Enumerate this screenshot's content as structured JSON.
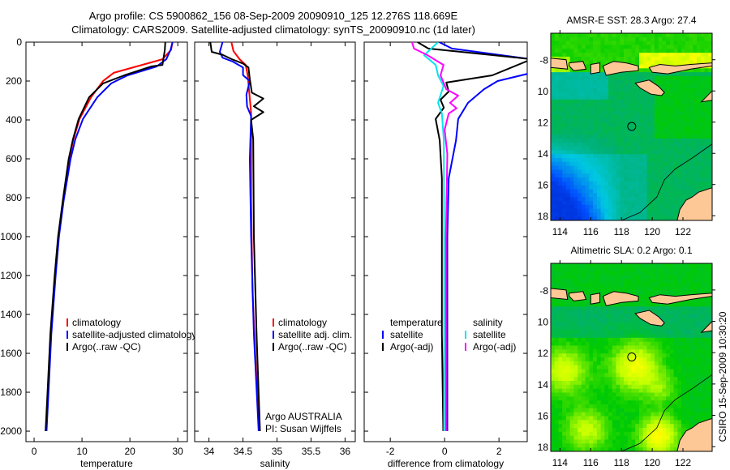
{
  "title": {
    "line1": "Argo profile: CS 5900862_156 08-Sep-2009 20090910_125 12.276S 118.669E",
    "line2": "Climatology: CARS2009. Satellite-adjusted climatology: synTS_20090910.nc (1d later)"
  },
  "side_note": "CSIRO 15-Sep-2009 10:30:20",
  "credit": {
    "line1": "Argo AUSTRALIA",
    "line2": "PI: Susan Wijffels"
  },
  "colors": {
    "climatology": "#ff0000",
    "satellite": "#0000ff",
    "argo": "#000000",
    "sal_satellite": "#00e5ee",
    "sal_argo": "#ff00ff",
    "land": "#fdc896"
  },
  "chart_data": [
    {
      "type": "line",
      "id": "temperature",
      "xlabel": "temperature",
      "ylabel": "",
      "xlim": [
        -1.7,
        32
      ],
      "ylim": [
        0,
        2054
      ],
      "y_reversed": true,
      "xticks": [
        0,
        10,
        20,
        30
      ],
      "xtick_labels": [
        "0",
        "10",
        "20",
        "30"
      ],
      "yticks": [
        0,
        200,
        400,
        600,
        800,
        1000,
        1200,
        1400,
        1600,
        1800,
        2000
      ],
      "ytick_labels": [
        "0",
        "200",
        "400",
        "600",
        "800",
        "1000",
        "1200",
        "1400",
        "1600",
        "1800",
        "2000"
      ],
      "legend": {
        "placement": "lower-center",
        "entries": [
          "climatology",
          "satellite-adjusted climatology",
          "Argo(..raw -QC)"
        ]
      },
      "series": [
        {
          "name": "climatology",
          "color": "#ff0000",
          "depth": [
            0,
            40,
            88,
            158,
            200,
            283,
            395,
            500,
            603,
            812,
            1000,
            1200,
            1500,
            1800,
            2000
          ],
          "values": [
            28.9,
            28.6,
            26.8,
            16.6,
            14.4,
            11.9,
            9.5,
            8.2,
            7.3,
            6.1,
            5.1,
            4.4,
            3.5,
            2.9,
            2.5
          ]
        },
        {
          "name": "satellite-adjusted climatology",
          "color": "#0000ff",
          "depth": [
            0,
            40,
            88,
            125,
            171,
            212,
            283,
            395,
            500,
            603,
            812,
            1000,
            1200,
            1500,
            1800,
            2000
          ],
          "values": [
            28.9,
            28.5,
            27.6,
            25.6,
            19.5,
            16.1,
            13.2,
            10.2,
            8.6,
            7.6,
            6.2,
            5.2,
            4.5,
            3.6,
            3.0,
            2.6
          ]
        },
        {
          "name": "Argo(..raw -QC)",
          "color": "#000000",
          "depth": [
            0,
            40,
            117,
            125,
            171,
            212,
            283,
            395,
            500,
            603,
            812,
            1000,
            1200,
            1500,
            1800,
            2000
          ],
          "values": [
            27.4,
            27.3,
            26.8,
            24.5,
            18.8,
            14.4,
            11.5,
            9.3,
            8.1,
            7.2,
            6.0,
            5.0,
            4.3,
            3.4,
            2.8,
            2.4
          ]
        }
      ]
    },
    {
      "type": "line",
      "id": "salinity",
      "xlabel": "salinity",
      "xlim": [
        33.79,
        36.15
      ],
      "ylim": [
        0,
        2054
      ],
      "y_reversed": true,
      "xticks": [
        34,
        34.5,
        35,
        35.5,
        36
      ],
      "xtick_labels": [
        "34",
        "34.5",
        "35",
        "35.5",
        "36"
      ],
      "yticks": [
        0,
        200,
        400,
        600,
        800,
        1000,
        1200,
        1400,
        1600,
        1800,
        2000
      ],
      "legend": {
        "placement": "lower-right",
        "entries": [
          "climatology",
          "satellite adj. clim.",
          "Argo(..raw -QC)"
        ]
      },
      "series": [
        {
          "name": "climatology",
          "color": "#ff0000",
          "depth": [
            0,
            46,
            88,
            117,
            171,
            365,
            800,
            1283,
            1600,
            2000
          ],
          "values": [
            34.33,
            34.36,
            34.45,
            34.54,
            34.57,
            34.62,
            34.62,
            34.64,
            34.68,
            34.74
          ]
        },
        {
          "name": "satellite adj. clim.",
          "color": "#0000ff",
          "depth": [
            0,
            50,
            80,
            100,
            130,
            170,
            200,
            270,
            330,
            380,
            600,
            1000,
            1500,
            2000
          ],
          "values": [
            34.2,
            34.16,
            34.2,
            34.35,
            34.5,
            34.5,
            34.6,
            34.55,
            34.56,
            34.62,
            34.6,
            34.62,
            34.66,
            34.73
          ]
        },
        {
          "name": "Argo(..raw -QC)",
          "color": "#000000",
          "depth": [
            0,
            50,
            65,
            90,
            110,
            130,
            190,
            260,
            290,
            330,
            360,
            400,
            500,
            1000,
            1500,
            2000
          ],
          "values": [
            34.02,
            34.04,
            34.2,
            34.35,
            34.5,
            34.58,
            34.6,
            34.63,
            34.8,
            34.66,
            34.8,
            34.62,
            34.65,
            34.66,
            34.7,
            34.75
          ]
        }
      ]
    },
    {
      "type": "line",
      "id": "difference",
      "xlabel": "difference from climatology",
      "xlim": [
        -2.96,
        3.04
      ],
      "ylim": [
        0,
        2054
      ],
      "y_reversed": true,
      "xticks": [
        -2,
        0,
        2
      ],
      "xtick_labels": [
        "-2",
        "0",
        "2"
      ],
      "yticks": [
        0,
        200,
        400,
        600,
        800,
        1000,
        1200,
        1400,
        1600,
        1800,
        2000
      ],
      "legend": {
        "placement": "lower-center",
        "groups": [
          {
            "header": "temperature",
            "entries": [
              "satellite",
              "Argo(-adj)"
            ]
          },
          {
            "header": "salinity",
            "entries": [
              "satellite",
              "Argo(-adj)"
            ]
          }
        ]
      },
      "series": [
        {
          "name": "temperature satellite",
          "color": "#0000ff",
          "depth": [
            0,
            33,
            88,
            158,
            200,
            242,
            312,
            395,
            505,
            700,
            1000,
            1500,
            2000
          ],
          "values": [
            -0.2,
            0.27,
            3.2,
            3.2,
            1.95,
            1.45,
            0.86,
            0.5,
            0.42,
            0.15,
            0.1,
            0.1,
            0.1
          ]
        },
        {
          "name": "temperature Argo(-adj)",
          "color": "#000000",
          "depth": [
            0,
            33,
            67,
            88,
            171,
            208,
            254,
            296,
            337,
            395,
            505,
            700,
            1000,
            1500,
            2000
          ],
          "values": [
            -1.0,
            -0.6,
            1.8,
            3.2,
            1.75,
            0.06,
            0.15,
            -0.15,
            -0.03,
            -0.33,
            -0.18,
            -0.1,
            -0.1,
            -0.1,
            -0.05
          ]
        },
        {
          "name": "salinity satellite",
          "color": "#00e5ee",
          "depth": [
            0,
            67,
            117,
            171,
            225,
            312,
            367,
            505,
            1000,
            1500,
            2000
          ],
          "values": [
            -0.24,
            -0.75,
            -0.33,
            -0.24,
            -0.04,
            -0.24,
            -0.1,
            -0.03,
            -0.02,
            -0.02,
            -0.02
          ]
        },
        {
          "name": "salinity Argo(-adj)",
          "color": "#ff00ff",
          "depth": [
            0,
            33,
            67,
            117,
            171,
            242,
            275,
            312,
            340,
            367,
            450,
            575,
            1000,
            1500,
            2000
          ],
          "values": [
            -1.2,
            -1.13,
            -0.63,
            -0.04,
            -0.15,
            0.06,
            0.5,
            0.2,
            0.44,
            0.15,
            0.0,
            0.1,
            0.05,
            0.05,
            0.05
          ]
        }
      ]
    }
  ],
  "maps": [
    {
      "id": "sst",
      "title": "AMSR-E SST: 28.3 Argo: 27.4",
      "lon_range": [
        113.4,
        123.9
      ],
      "lat_range": [
        -18.3,
        -6.3
      ],
      "lon_ticks": [
        114,
        116,
        118,
        120,
        122
      ],
      "lon_tick_labels": [
        "114",
        "116",
        "118",
        "120",
        "122"
      ],
      "lat_ticks": [
        -8,
        -10,
        -12,
        -14,
        -16,
        -18
      ],
      "lat_tick_labels": [
        "-8",
        "10",
        "12",
        "14",
        "16",
        "18"
      ],
      "marker": {
        "lon": 118.669,
        "lat": -12.276
      }
    },
    {
      "id": "sla",
      "title": "Altimetric SLA: 0.2 Argo: 0.1",
      "lon_range": [
        113.4,
        123.9
      ],
      "lat_range": [
        -18.3,
        -6.3
      ],
      "lon_ticks": [
        114,
        116,
        118,
        120,
        122
      ],
      "lon_tick_labels": [
        "114",
        "116",
        "118",
        "120",
        "122"
      ],
      "lat_ticks": [
        -8,
        -10,
        -12,
        -14,
        -16,
        -18
      ],
      "lat_tick_labels": [
        "-8",
        "10",
        "12",
        "14",
        "16",
        "18"
      ],
      "marker": {
        "lon": 118.669,
        "lat": -12.276
      }
    }
  ]
}
